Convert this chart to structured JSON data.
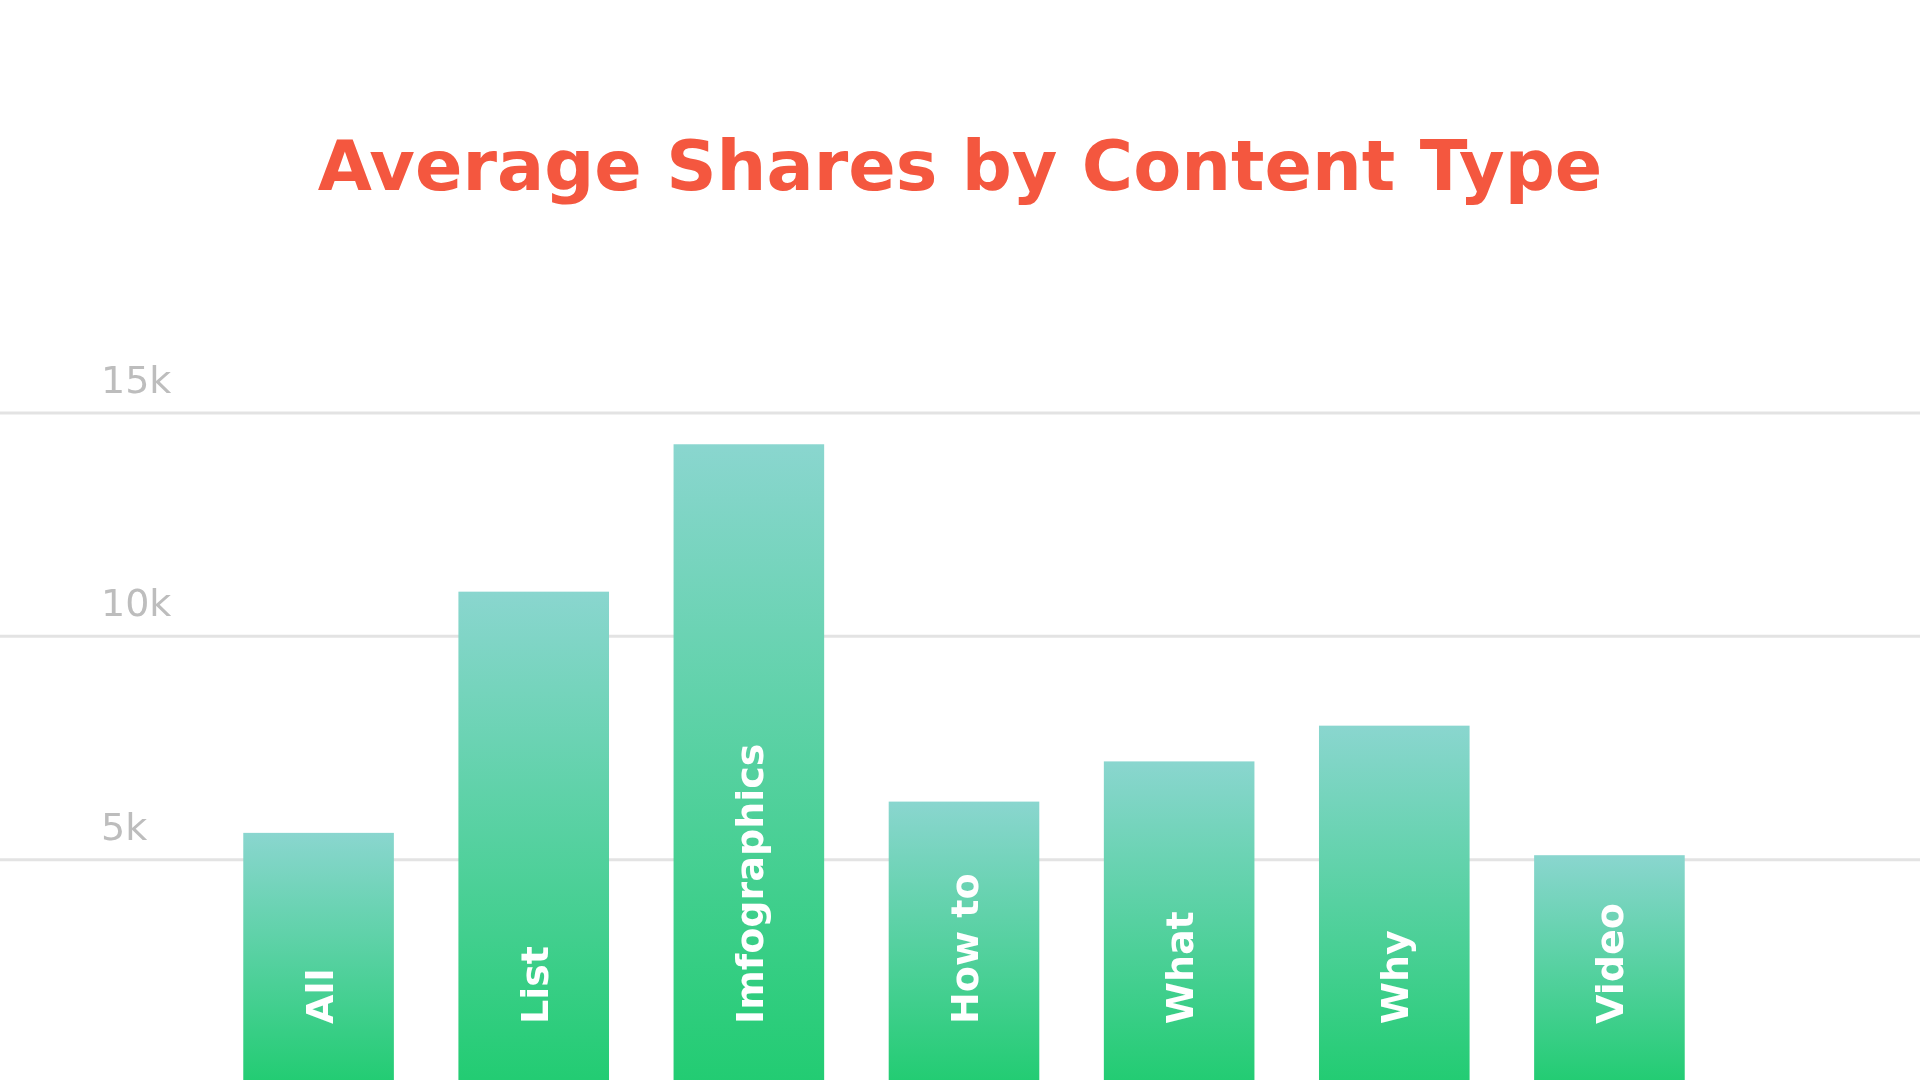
{
  "chart_data": {
    "type": "bar",
    "title": "Average Shares by Content Type",
    "categories": [
      "All",
      "List",
      "Imfographics",
      "How to",
      "What",
      "Why",
      "Video"
    ],
    "values": [
      5600,
      11000,
      14300,
      6300,
      7200,
      8000,
      5100
    ],
    "color": "#22cc72",
    "ylim": [
      0,
      15000
    ],
    "yticks": [
      {
        "value": 5000,
        "label": "5k"
      },
      {
        "value": 10000,
        "label": "10k"
      },
      {
        "value": 15000,
        "label": "15k"
      }
    ],
    "grid": "y"
  }
}
